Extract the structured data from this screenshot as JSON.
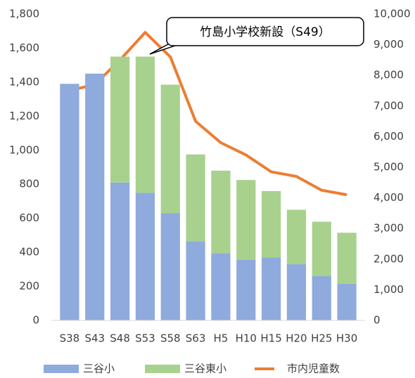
{
  "chart_data": {
    "type": "bar-line",
    "categories": [
      "S38",
      "S43",
      "S48",
      "S53",
      "S58",
      "S63",
      "H5",
      "H10",
      "H15",
      "H20",
      "H25",
      "H30"
    ],
    "series": [
      {
        "name": "三谷小",
        "type": "bar",
        "color": "#8faadc",
        "values": [
          1390,
          1450,
          810,
          750,
          630,
          465,
          395,
          355,
          370,
          330,
          260,
          215
        ]
      },
      {
        "name": "三谷東小",
        "type": "bar",
        "color": "#a9d18e",
        "values": [
          0,
          0,
          740,
          800,
          755,
          510,
          485,
          470,
          390,
          320,
          320,
          300
        ]
      },
      {
        "name": "市内児童数",
        "type": "line",
        "axis": "y2",
        "color": "#ed7d31",
        "values": [
          7500,
          7700,
          8500,
          9400,
          8600,
          6500,
          5800,
          5400,
          4850,
          4700,
          4250,
          4100
        ]
      }
    ],
    "stacked": true,
    "ylim": [
      0,
      1800
    ],
    "yticks": [
      0,
      200,
      400,
      600,
      800,
      {
        "value": 1000,
        "label": "1,000"
      },
      {
        "value": 1200,
        "label": "1,200"
      },
      {
        "value": 1400,
        "label": "1,400"
      },
      {
        "value": 1600,
        "label": "1,600"
      },
      {
        "value": 1800,
        "label": "1,800"
      }
    ],
    "y2lim": [
      0,
      10000
    ],
    "y2ticks": [
      0,
      {
        "value": 1000,
        "label": "1,000"
      },
      {
        "value": 2000,
        "label": "2,000"
      },
      {
        "value": 3000,
        "label": "3,000"
      },
      {
        "value": 4000,
        "label": "4,000"
      },
      {
        "value": 5000,
        "label": "5,000"
      },
      {
        "value": 6000,
        "label": "6,000"
      },
      {
        "value": 7000,
        "label": "7,000"
      },
      {
        "value": 8000,
        "label": "8,000"
      },
      {
        "value": 9000,
        "label": "9,000"
      },
      {
        "value": 10000,
        "label": "10,000"
      }
    ],
    "annotation": "竹島小学校新設（S49）",
    "grid": false,
    "legend": "bottom"
  }
}
